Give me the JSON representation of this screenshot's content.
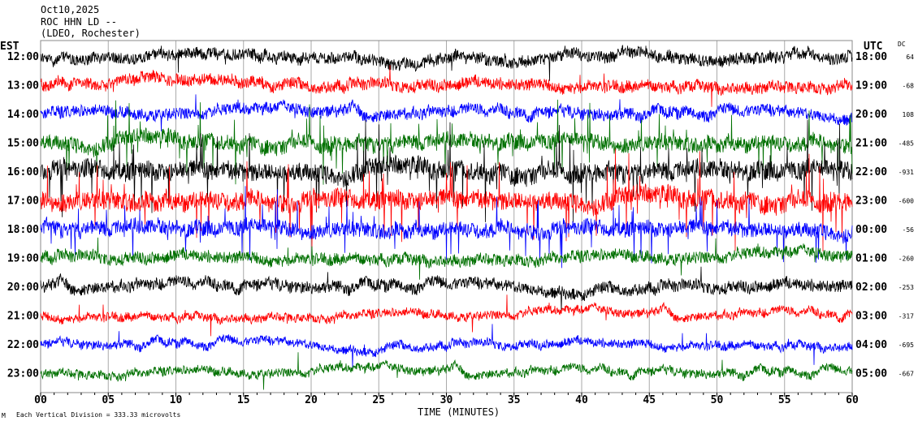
{
  "header": {
    "date": "Oct10,2025",
    "station": "ROC HHN LD --",
    "network": "(LDEO, Rochester)"
  },
  "left_axis_title": "EST",
  "right_axis_title": "UTC",
  "dc_title": "DC",
  "footer": {
    "scale_note": "Each Vertical Division =  333.33 microvolts",
    "corner_mark": "M",
    "xlabel": "TIME (MINUTES)"
  },
  "chart_data": {
    "type": "line",
    "subtype": "helicorder",
    "title": "Oct10,2025 ROC HHN LD -- (LDEO, Rochester)",
    "xlabel": "TIME (MINUTES)",
    "xlim": [
      0,
      60
    ],
    "x_ticks": [
      "00",
      "05",
      "10",
      "15",
      "20",
      "25",
      "30",
      "35",
      "40",
      "45",
      "50",
      "55",
      "60"
    ],
    "grid": "vertical every 5 minutes",
    "colors": [
      "#000000",
      "#ff0000",
      "#0000ff",
      "#007000"
    ],
    "rows": [
      {
        "est": "12:00",
        "utc": "18:00",
        "dc": "64",
        "activity": "moderate"
      },
      {
        "est": "13:00",
        "utc": "19:00",
        "dc": "-68",
        "activity": "moderate"
      },
      {
        "est": "14:00",
        "utc": "20:00",
        "dc": "108",
        "activity": "moderate"
      },
      {
        "est": "15:00",
        "utc": "21:00",
        "dc": "-485",
        "activity": "high"
      },
      {
        "est": "16:00",
        "utc": "22:00",
        "dc": "-931",
        "activity": "very high"
      },
      {
        "est": "17:00",
        "utc": "23:00",
        "dc": "-600",
        "activity": "very high"
      },
      {
        "est": "18:00",
        "utc": "00:00",
        "dc": "-56",
        "activity": "high"
      },
      {
        "est": "19:00",
        "utc": "01:00",
        "dc": "-260",
        "activity": "moderate"
      },
      {
        "est": "20:00",
        "utc": "02:00",
        "dc": "-253",
        "activity": "moderate"
      },
      {
        "est": "21:00",
        "utc": "03:00",
        "dc": "-317",
        "activity": "low"
      },
      {
        "est": "22:00",
        "utc": "04:00",
        "dc": "-695",
        "activity": "low"
      },
      {
        "est": "23:00",
        "utc": "05:00",
        "dc": "-667",
        "activity": "low"
      }
    ]
  }
}
